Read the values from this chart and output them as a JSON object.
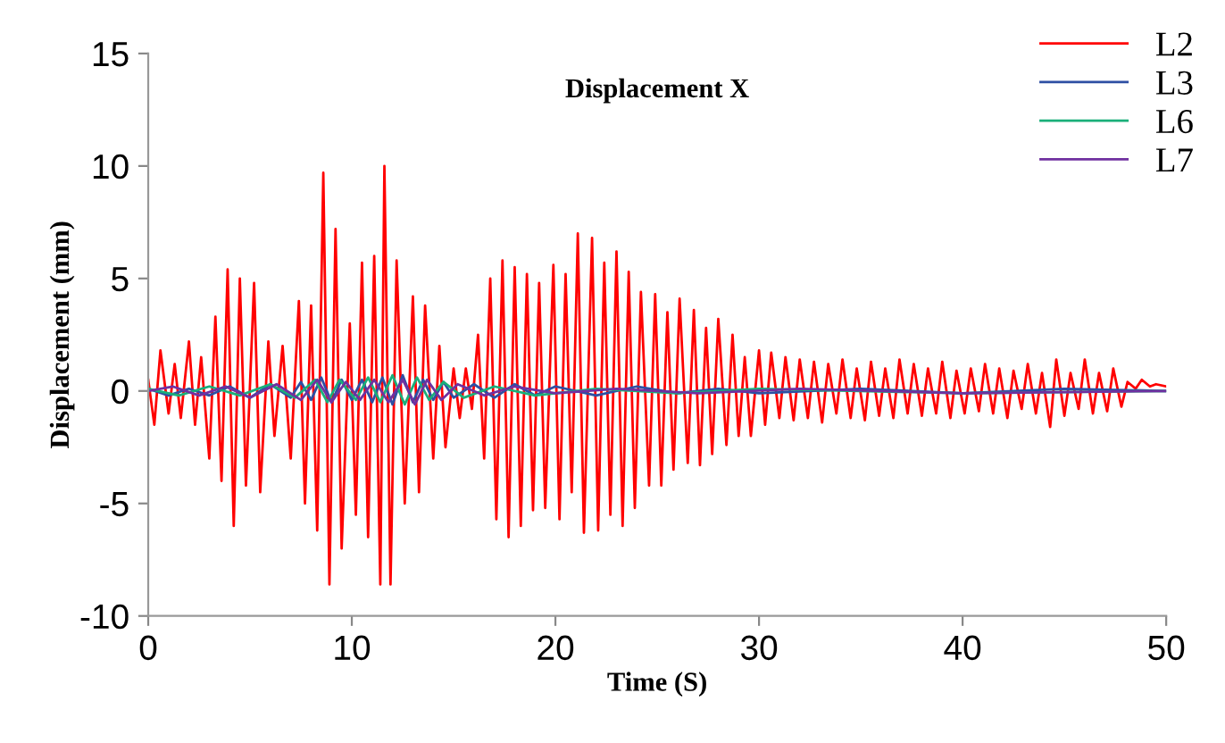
{
  "chart_data": {
    "type": "line",
    "title": "Displacement X",
    "xlabel": "Time (S)",
    "ylabel": "Displacement (mm)",
    "xlim": [
      0,
      50
    ],
    "xticks": [
      0,
      10,
      20,
      30,
      40,
      50
    ],
    "ylim": [
      -10,
      15
    ],
    "yticks": [
      -10,
      -5,
      0,
      5,
      10,
      15
    ],
    "grid": false,
    "legend": "top right",
    "marker": "none",
    "line_style": "solid",
    "series": [
      {
        "name": "L2",
        "color": "#ff0000",
        "x": [
          0,
          0.3,
          0.6,
          1.0,
          1.3,
          1.6,
          2.0,
          2.3,
          2.6,
          3.0,
          3.3,
          3.6,
          3.9,
          4.2,
          4.5,
          4.8,
          5.2,
          5.5,
          5.9,
          6.2,
          6.6,
          7.0,
          7.4,
          7.7,
          8.0,
          8.3,
          8.6,
          8.9,
          9.2,
          9.5,
          9.9,
          10.2,
          10.5,
          10.8,
          11.1,
          11.4,
          11.6,
          11.9,
          12.2,
          12.6,
          13.0,
          13.3,
          13.6,
          14.0,
          14.3,
          14.6,
          15.0,
          15.3,
          15.6,
          15.9,
          16.2,
          16.5,
          16.8,
          17.1,
          17.4,
          17.7,
          18.0,
          18.3,
          18.6,
          18.9,
          19.2,
          19.5,
          19.9,
          20.2,
          20.5,
          20.8,
          21.1,
          21.4,
          21.8,
          22.1,
          22.4,
          22.7,
          23.0,
          23.3,
          23.6,
          23.9,
          24.2,
          24.6,
          24.9,
          25.2,
          25.5,
          25.8,
          26.1,
          26.5,
          26.8,
          27.1,
          27.4,
          27.7,
          28.0,
          28.4,
          28.7,
          29.0,
          29.3,
          29.6,
          30.0,
          30.3,
          30.6,
          31.0,
          31.3,
          31.7,
          32.0,
          32.4,
          32.7,
          33.1,
          33.4,
          33.8,
          34.1,
          34.5,
          34.8,
          35.2,
          35.5,
          35.9,
          36.2,
          36.6,
          36.9,
          37.3,
          37.6,
          38.0,
          38.3,
          38.7,
          39.0,
          39.4,
          39.7,
          40.1,
          40.4,
          40.8,
          41.1,
          41.5,
          41.8,
          42.2,
          42.5,
          42.9,
          43.2,
          43.6,
          43.9,
          44.3,
          44.6,
          45.0,
          45.3,
          45.7,
          46.0,
          46.4,
          46.7,
          47.1,
          47.4,
          47.8,
          48.1,
          48.5,
          48.8,
          49.2,
          49.5,
          50.0
        ],
        "values": [
          0.5,
          -1.5,
          1.8,
          -1.0,
          1.2,
          -1.2,
          2.2,
          -1.5,
          1.5,
          -3.0,
          3.3,
          -4.0,
          5.4,
          -6.0,
          5.0,
          -4.2,
          4.8,
          -4.5,
          2.2,
          -2.0,
          2.0,
          -3.0,
          4.0,
          -5.0,
          3.8,
          -6.2,
          9.7,
          -8.6,
          7.2,
          -7.0,
          3.0,
          -5.5,
          5.7,
          -6.5,
          6.0,
          -8.6,
          10.0,
          -8.6,
          5.8,
          -5.0,
          4.2,
          -4.5,
          3.8,
          -3.0,
          2.0,
          -2.5,
          1.0,
          -1.2,
          1.0,
          -0.8,
          2.5,
          -3.0,
          5.0,
          -5.7,
          5.8,
          -6.5,
          5.5,
          -6.0,
          5.2,
          -5.3,
          4.8,
          -5.2,
          5.6,
          -5.7,
          5.2,
          -4.5,
          7.0,
          -6.3,
          6.8,
          -6.2,
          5.7,
          -5.5,
          6.2,
          -6.0,
          5.3,
          -5.2,
          4.4,
          -4.2,
          4.3,
          -4.2,
          3.5,
          -3.5,
          4.1,
          -3.2,
          3.6,
          -3.3,
          2.8,
          -2.8,
          3.2,
          -2.4,
          2.5,
          -2.0,
          1.5,
          -2.0,
          1.8,
          -1.5,
          1.7,
          -1.2,
          1.5,
          -1.3,
          1.4,
          -1.2,
          1.3,
          -1.4,
          1.2,
          -1.0,
          1.4,
          -1.2,
          1.0,
          -1.3,
          1.3,
          -1.1,
          1.0,
          -1.2,
          1.4,
          -1.0,
          1.2,
          -1.1,
          1.0,
          -1.0,
          1.3,
          -1.2,
          0.9,
          -1.0,
          1.0,
          -0.9,
          1.2,
          -1.0,
          1.0,
          -1.2,
          0.9,
          -0.8,
          1.2,
          -1.0,
          0.8,
          -1.6,
          1.4,
          -1.1,
          0.8,
          -0.8,
          1.4,
          -1.0,
          0.8,
          -0.9,
          1.0,
          -0.7,
          0.4,
          0.1,
          0.5,
          0.2,
          0.3,
          0.2
        ]
      },
      {
        "name": "L3",
        "color": "#2e4fa3",
        "x": [
          0,
          1,
          2,
          3,
          4,
          5,
          6,
          7,
          7.5,
          8,
          8.5,
          9,
          9.5,
          10,
          10.5,
          11,
          11.5,
          12,
          12.5,
          13,
          13.5,
          14,
          14.5,
          15,
          16,
          17,
          18,
          19,
          20,
          22,
          24,
          26,
          28,
          30,
          35,
          40,
          45,
          50
        ],
        "values": [
          0.1,
          -0.2,
          0.1,
          -0.2,
          0.2,
          -0.3,
          0.3,
          -0.3,
          0.4,
          -0.4,
          0.6,
          -0.5,
          0.5,
          -0.4,
          0.5,
          -0.5,
          0.6,
          -0.6,
          0.7,
          -0.5,
          0.5,
          -0.4,
          0.4,
          -0.3,
          0.3,
          -0.3,
          0.3,
          -0.2,
          0.2,
          -0.2,
          0.2,
          -0.1,
          0.1,
          -0.1,
          0.1,
          -0.1,
          0.1,
          0
        ]
      },
      {
        "name": "L6",
        "color": "#1aaf7a",
        "x": [
          0,
          1.5,
          3,
          4.5,
          6,
          7.2,
          8.2,
          8.8,
          9.4,
          10.2,
          10.8,
          11.4,
          12,
          12.6,
          13.2,
          13.8,
          14.5,
          15.5,
          17,
          19,
          22,
          26,
          30,
          40,
          50
        ],
        "values": [
          0.1,
          -0.2,
          0.2,
          -0.2,
          0.3,
          -0.3,
          0.5,
          -0.5,
          0.5,
          -0.4,
          0.6,
          -0.5,
          0.7,
          -0.6,
          0.6,
          -0.4,
          0.4,
          -0.3,
          0.2,
          -0.2,
          0.1,
          -0.1,
          0.1,
          -0.1,
          0
        ]
      },
      {
        "name": "L7",
        "color": "#7030a0",
        "x": [
          0,
          1.2,
          2.5,
          3.8,
          5,
          6.3,
          7.5,
          8.3,
          9,
          9.7,
          10.4,
          11.1,
          11.8,
          12.5,
          13.1,
          13.7,
          14.4,
          15.2,
          16.5,
          18,
          20,
          23,
          27,
          32,
          40,
          50
        ],
        "values": [
          0.0,
          0.2,
          -0.2,
          0.2,
          -0.3,
          0.3,
          -0.4,
          0.5,
          -0.5,
          0.4,
          -0.4,
          0.5,
          -0.5,
          0.5,
          -0.6,
          0.5,
          -0.4,
          0.3,
          -0.2,
          0.2,
          -0.1,
          0.1,
          -0.1,
          0.1,
          -0.1,
          0
        ]
      }
    ]
  }
}
